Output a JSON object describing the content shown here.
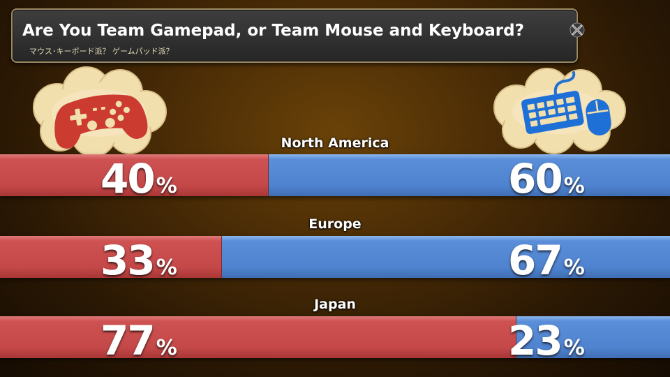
{
  "header": {
    "title": "Are You Team Gamepad, or Team Mouse and Keyboard?",
    "subtitle": "マウス･キーボード派？ ゲームパッド派？"
  },
  "icons": {
    "left": "gamepad-icon",
    "right": "keyboard-mouse-icon",
    "close": "close-icon"
  },
  "colors": {
    "gamepad": "#c94b4b",
    "mouse_keyboard": "#4f84cf",
    "cloud": "#f2dfae",
    "gamepad_icon": "#cc3b30",
    "keyboard_icon": "#1f70d6"
  },
  "chart_data": {
    "type": "bar",
    "orientation": "horizontal",
    "stacked": true,
    "unit": "%",
    "categories": [
      "North America",
      "Europe",
      "Japan"
    ],
    "series": [
      {
        "values": [
          40,
          33,
          77
        ],
        "color": "#c94b4b"
      },
      {
        "values": [
          60,
          67,
          23
        ],
        "color": "#4f84cf"
      }
    ],
    "xlim": [
      0,
      100
    ],
    "grid": false
  }
}
